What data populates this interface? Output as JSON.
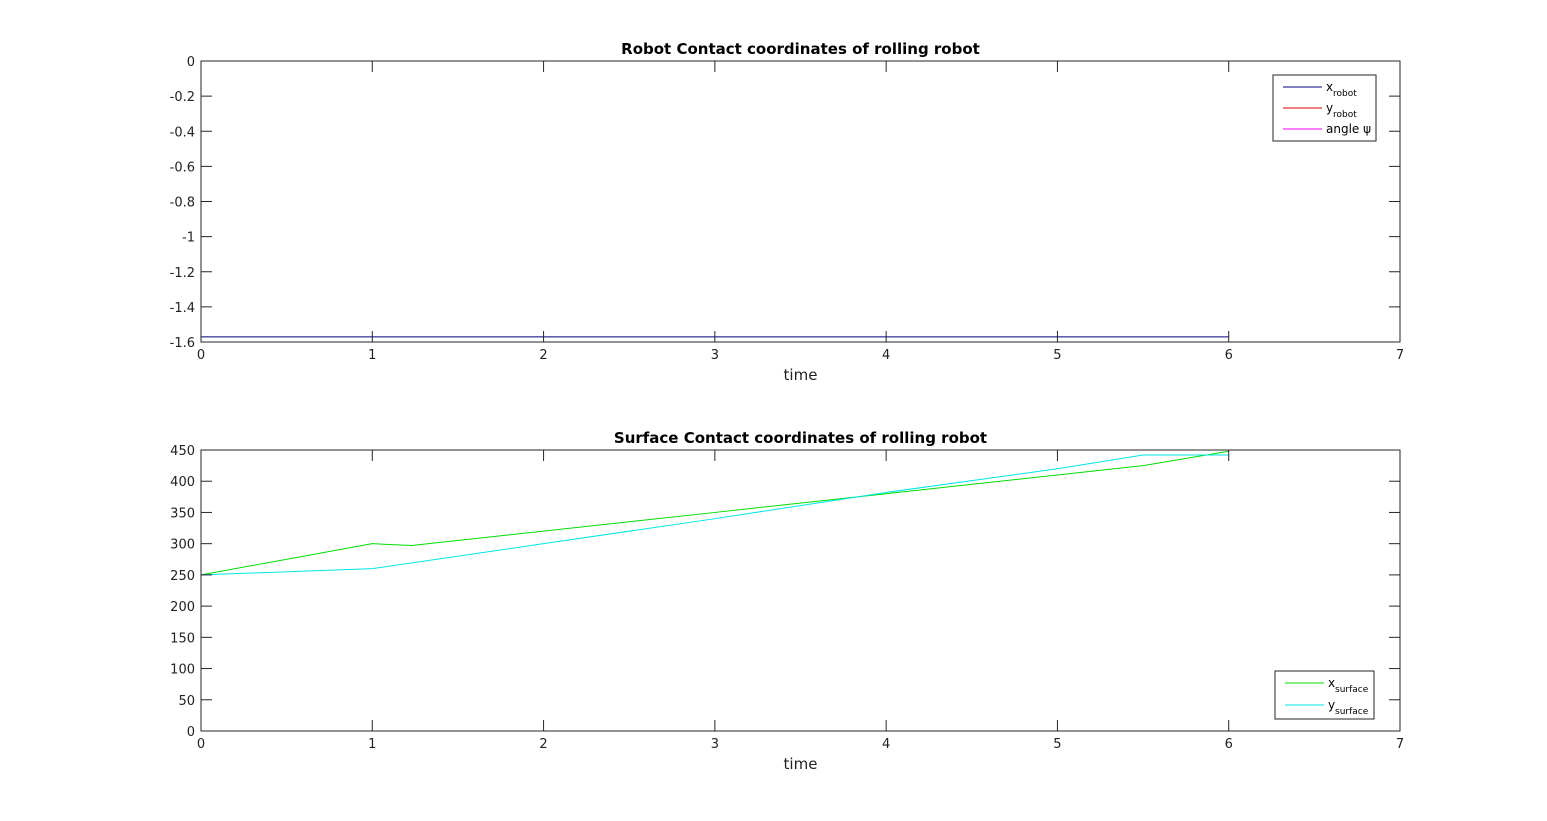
{
  "chart_data": [
    {
      "type": "line",
      "title": "Robot Contact coordinates of rolling robot",
      "xlabel": "time",
      "ylabel": "",
      "xlim": [
        0,
        7
      ],
      "ylim": [
        -1.6,
        0
      ],
      "xticks": [
        "0",
        "1",
        "2",
        "3",
        "4",
        "5",
        "6",
        "7"
      ],
      "yticks": [
        "0",
        "-0.2",
        "-0.4",
        "-0.6",
        "-0.8",
        "-1",
        "-1.2",
        "-1.4",
        "-1.6"
      ],
      "grid": false,
      "legend_position": "top-right",
      "series": [
        {
          "label": "x",
          "label_sub": "robot",
          "color": "#00007f",
          "x": [
            0,
            6
          ],
          "y": [
            -1.571,
            -1.571
          ]
        },
        {
          "label": "y",
          "label_sub": "robot",
          "color": "#e00000",
          "x": [
            0,
            6
          ],
          "y": [
            0,
            0
          ]
        },
        {
          "label": "angle ψ",
          "label_sub": "",
          "color": "#ff00ff",
          "x": [
            0,
            6
          ],
          "y": [
            0,
            0
          ]
        }
      ]
    },
    {
      "type": "line",
      "title": "Surface Contact coordinates of rolling robot",
      "xlabel": "time",
      "ylabel": "",
      "xlim": [
        0,
        7
      ],
      "ylim": [
        0,
        450
      ],
      "xticks": [
        "0",
        "1",
        "2",
        "3",
        "4",
        "5",
        "6",
        "7"
      ],
      "yticks": [
        "450",
        "400",
        "350",
        "300",
        "250",
        "200",
        "150",
        "100",
        "50",
        "0"
      ],
      "grid": false,
      "legend_position": "bottom-right",
      "series": [
        {
          "label": "x",
          "label_sub": "surface",
          "color": "#00dd00",
          "x": [
            0,
            1,
            1.23,
            3,
            4,
            5.5,
            6
          ],
          "y": [
            250,
            300,
            297,
            350,
            380,
            425,
            448
          ]
        },
        {
          "label": "y",
          "label_sub": "surface",
          "color": "#00e5e5",
          "x": [
            0,
            1,
            2,
            3,
            4,
            5,
            5.5,
            6
          ],
          "y": [
            250,
            260,
            300,
            340,
            382,
            420,
            442,
            442
          ]
        }
      ]
    }
  ]
}
